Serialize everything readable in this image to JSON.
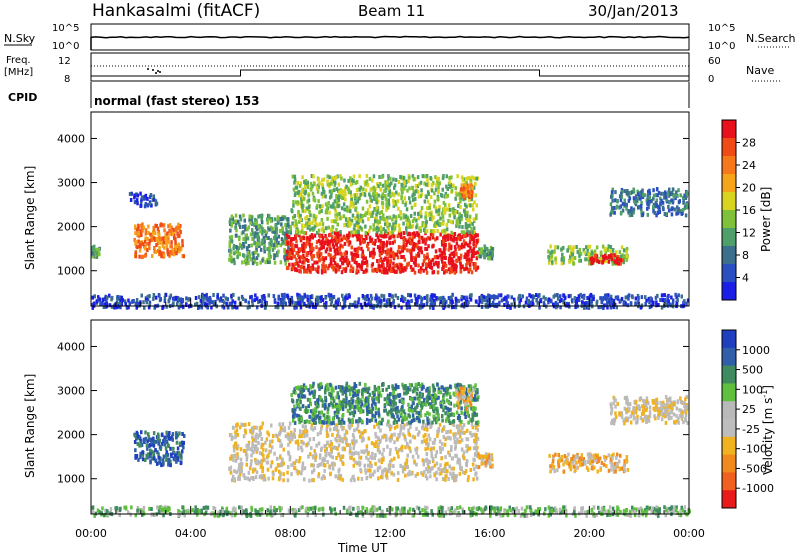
{
  "header": {
    "station": "Hankasalmi (fitACF)",
    "beam": "Beam 11",
    "date": "30/Jan/2013"
  },
  "nsky_panel": {
    "left_label": "N.Sky",
    "right_label": "N.Search",
    "left_ticks": [
      "10^5",
      "10^0"
    ],
    "right_ticks": [
      "10^5",
      "10^0"
    ]
  },
  "freq_panel": {
    "left_label_1": "Freq.",
    "left_label_2": "[MHz]",
    "left_ticks": [
      "12",
      "8"
    ],
    "right_label": "Nave",
    "right_ticks": [
      "60",
      "0"
    ],
    "cpid_label": "CPID",
    "cpid_text": "normal (fast stereo) 153",
    "freq_changes_hours": [
      6,
      18
    ]
  },
  "colors": {
    "power": [
      "#1b1ee6",
      "#2a4fc0",
      "#3b6f8c",
      "#4f9f6b",
      "#7fc23a",
      "#d9d41f",
      "#f6a51a",
      "#f7781a",
      "#f04a16",
      "#e8101a"
    ],
    "velocity": [
      "#1f3fbf",
      "#2f5fa8",
      "#3f8a5f",
      "#5fbf3f",
      "#b9b9b9",
      "#bdbdbd",
      "#f0b21f",
      "#f08a1f",
      "#f0601f",
      "#e81a1a"
    ]
  },
  "chart_data": [
    {
      "type": "heatmap",
      "name": "power",
      "xlabel": "",
      "ylabel": "Slant Range [km]",
      "xlim": [
        0,
        24
      ],
      "ylim": [
        200,
        4600
      ],
      "y_ticks": [
        "1000",
        "2000",
        "3000",
        "4000"
      ],
      "colorbar_label": "Power [dB]",
      "colorbar_ticks": [
        "4",
        "8",
        "12",
        "16",
        "20",
        "24",
        "28"
      ],
      "scatter_regions": [
        {
          "t0": 0.0,
          "t1": 0.3,
          "r0": 1350,
          "r1": 1600,
          "level": 3
        },
        {
          "t0": 1.7,
          "t1": 3.7,
          "r0": 1350,
          "r1": 2100,
          "level": 7
        },
        {
          "t0": 1.5,
          "t1": 2.6,
          "r0": 2500,
          "r1": 2800,
          "level": 1
        },
        {
          "t0": 5.5,
          "t1": 8.0,
          "r0": 1200,
          "r1": 2300,
          "level": 3
        },
        {
          "t0": 7.8,
          "t1": 15.5,
          "r0": 1000,
          "r1": 1900,
          "level": 9
        },
        {
          "t0": 8.0,
          "t1": 15.5,
          "r0": 1900,
          "r1": 3200,
          "level": 4
        },
        {
          "t0": 14.8,
          "t1": 15.3,
          "r0": 2700,
          "r1": 3000,
          "level": 7
        },
        {
          "t0": 15.5,
          "t1": 16.1,
          "r0": 1300,
          "r1": 1600,
          "level": 3
        },
        {
          "t0": 18.3,
          "t1": 21.5,
          "r0": 1200,
          "r1": 1600,
          "level": 4
        },
        {
          "t0": 20.0,
          "t1": 21.3,
          "r0": 1200,
          "r1": 1400,
          "level": 9
        },
        {
          "t0": 20.8,
          "t1": 23.9,
          "r0": 2300,
          "r1": 2900,
          "level": 2
        },
        {
          "t0": 0.0,
          "t1": 24.0,
          "r0": 200,
          "r1": 500,
          "level": 1
        }
      ]
    },
    {
      "type": "heatmap",
      "name": "velocity",
      "xlabel": "Time UT",
      "ylabel": "Slant Range [km]",
      "xlim": [
        0,
        24
      ],
      "ylim": [
        200,
        4600
      ],
      "x_ticks": [
        "00:00",
        "04:00",
        "08:00",
        "12:00",
        "16:00",
        "20:00",
        "00:00"
      ],
      "y_ticks": [
        "1000",
        "2000",
        "3000",
        "4000"
      ],
      "colorbar_label": "Velocity [m s^-1]",
      "colorbar_ticks": [
        "1000",
        "500",
        "100",
        "25",
        "-25",
        "-100",
        "-500",
        "-1000"
      ],
      "scatter_regions": [
        {
          "t0": 1.7,
          "t1": 3.7,
          "r0": 1350,
          "r1": 2100,
          "level": 8
        },
        {
          "t0": 5.5,
          "t1": 15.5,
          "r0": 1000,
          "r1": 2300,
          "level": 4
        },
        {
          "t0": 8.0,
          "t1": 15.5,
          "r0": 2300,
          "r1": 3200,
          "level": 7
        },
        {
          "t0": 14.6,
          "t1": 15.3,
          "r0": 2600,
          "r1": 3100,
          "level": 3
        },
        {
          "t0": 15.5,
          "t1": 16.1,
          "r0": 1300,
          "r1": 1600,
          "level": 3
        },
        {
          "t0": 18.3,
          "t1": 21.5,
          "r0": 1200,
          "r1": 1600,
          "level": 3
        },
        {
          "t0": 20.8,
          "t1": 23.9,
          "r0": 2300,
          "r1": 2900,
          "level": 4
        },
        {
          "t0": 0.0,
          "t1": 24.0,
          "r0": 200,
          "r1": 400,
          "level": 6
        }
      ]
    }
  ]
}
